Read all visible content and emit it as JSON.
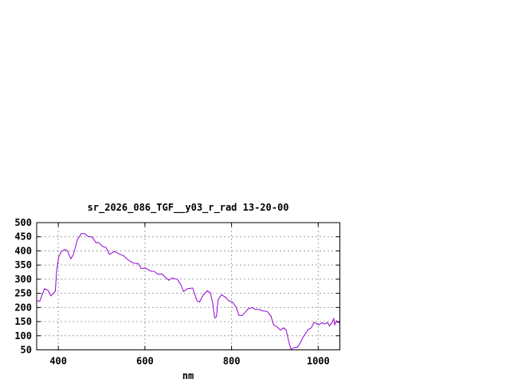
{
  "chart_data": {
    "type": "line",
    "title": "sr_2026_086_TGF__y03_r_rad 13-20-00",
    "xlabel": "nm",
    "ylabel": "",
    "xlim": [
      350,
      1050
    ],
    "ylim": [
      50,
      500
    ],
    "xticks": [
      400,
      600,
      800,
      1000
    ],
    "yticks": [
      50,
      100,
      150,
      200,
      250,
      300,
      350,
      400,
      450,
      500
    ],
    "grid": true,
    "legend": "none",
    "series": [
      {
        "color": "#9400d3",
        "x": [
          350,
          357,
          368,
          376,
          383,
          393,
          396,
          401,
          407,
          415,
          421,
          429,
          435,
          444,
          453,
          461,
          469,
          478,
          487,
          493,
          502,
          510,
          518,
          530,
          542,
          551,
          560,
          573,
          585,
          591,
          602,
          612,
          622,
          629,
          640,
          646,
          655,
          663,
          675,
          683,
          689,
          698,
          706,
          710,
          720,
          726,
          734,
          744,
          751,
          756,
          761,
          765,
          769,
          777,
          787,
          793,
          802,
          811,
          817,
          825,
          839,
          848,
          854,
          863,
          872,
          882,
          891,
          897,
          906,
          913,
          920,
          926,
          933,
          937,
          943,
          952,
          958,
          966,
          977,
          984,
          990,
          995,
          1001,
          1009,
          1015,
          1021,
          1026,
          1032,
          1036,
          1038,
          1042,
          1045,
          1050
        ],
        "y": [
          224,
          222,
          266,
          261,
          241,
          257,
          327,
          379,
          398,
          405,
          400,
          372,
          388,
          440,
          461,
          461,
          451,
          449,
          429,
          430,
          416,
          412,
          388,
          398,
          388,
          383,
          369,
          357,
          355,
          338,
          339,
          329,
          327,
          318,
          318,
          308,
          296,
          304,
          299,
          280,
          256,
          266,
          268,
          269,
          224,
          219,
          243,
          259,
          252,
          219,
          163,
          167,
          229,
          245,
          235,
          224,
          219,
          200,
          172,
          172,
          196,
          200,
          193,
          193,
          188,
          186,
          169,
          139,
          130,
          120,
          128,
          120,
          73,
          53,
          57,
          59,
          73,
          97,
          122,
          128,
          147,
          144,
          139,
          146,
          141,
          147,
          135,
          147,
          160,
          139,
          153,
          147,
          147
        ]
      }
    ]
  }
}
